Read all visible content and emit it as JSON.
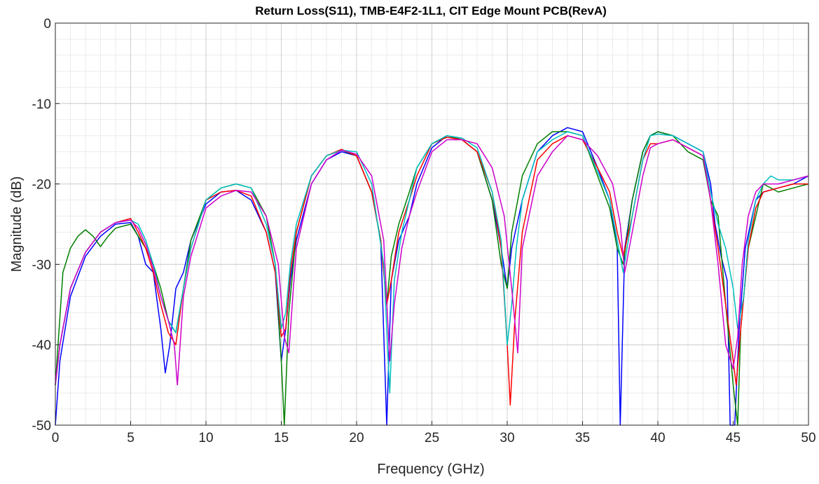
{
  "chart_data": {
    "type": "line",
    "title": "Return Loss(S11), TMB-E4F2-1L1, CIT Edge Mount PCB(RevA)",
    "xlabel": "Frequency (GHz)",
    "ylabel": "Magnitude (dB)",
    "xlim": [
      0,
      50
    ],
    "ylim": [
      -50,
      0
    ],
    "xticks": [
      0,
      5,
      10,
      15,
      20,
      25,
      30,
      35,
      40,
      45,
      50
    ],
    "yticks": [
      0,
      -10,
      -20,
      -30,
      -40,
      -50
    ],
    "xtick_labels": [
      "0",
      "5",
      "10",
      "15",
      "20",
      "25",
      "30",
      "35",
      "40",
      "45",
      "50"
    ],
    "ytick_labels": [
      "0",
      "-10",
      "-20",
      "-30",
      "-40",
      "-50"
    ],
    "grid": true,
    "minor_grid": true,
    "legend": "none",
    "series": [
      {
        "color": "#0000ff",
        "x": [
          0,
          0.3,
          1,
          2,
          3,
          4,
          5,
          5.5,
          6,
          6.5,
          7,
          7.3,
          7.6,
          8,
          8.5,
          9,
          10,
          11,
          12,
          13,
          14,
          14.6,
          15,
          15.3,
          15.6,
          16,
          17,
          18,
          19,
          20,
          21,
          21.6,
          22,
          22.3,
          22.8,
          23.5,
          24,
          25,
          26,
          27,
          28,
          29,
          29.6,
          30,
          30.3,
          31,
          32,
          33,
          34,
          35,
          36,
          36.8,
          37.3,
          37.5,
          37.8,
          38.3,
          39,
          39.5,
          40,
          41,
          42,
          43,
          43.5,
          43.8,
          44.2,
          44.6,
          44.8,
          45.1,
          45.4,
          45.8,
          46.5,
          47,
          48,
          49,
          50
        ],
        "y": [
          -50,
          -42,
          -34,
          -29,
          -26.5,
          -25,
          -24.8,
          -26.5,
          -30,
          -31,
          -38,
          -43.5,
          -40,
          -33,
          -31,
          -27,
          -22.5,
          -21,
          -20.8,
          -22,
          -26,
          -31,
          -42,
          -38,
          -32,
          -27,
          -20,
          -17,
          -16,
          -16.5,
          -21,
          -27,
          -50,
          -32,
          -27,
          -24,
          -20,
          -15.5,
          -14,
          -14.5,
          -16,
          -22,
          -28,
          -33,
          -28,
          -22,
          -16,
          -14,
          -13,
          -13.5,
          -18,
          -22,
          -28,
          -50,
          -28,
          -22,
          -16,
          -14,
          -13.5,
          -14,
          -15,
          -16,
          -20,
          -25,
          -29,
          -32,
          -50,
          -50,
          -38,
          -28,
          -22,
          -21,
          -20.5,
          -20,
          -19
        ]
      },
      {
        "color": "#008000",
        "x": [
          0,
          0.5,
          1,
          1.5,
          2,
          2.5,
          3,
          3.5,
          4,
          5,
          5.5,
          6,
          6.5,
          7,
          7.5,
          8,
          8.5,
          9,
          10,
          11,
          12,
          13,
          14,
          14.6,
          15,
          15.2,
          15.5,
          16,
          17,
          18,
          19,
          20,
          21,
          21.6,
          22,
          22.3,
          22.8,
          23.5,
          24,
          25,
          26,
          27,
          28,
          29,
          29.6,
          30,
          30.3,
          31,
          32,
          33,
          34,
          35,
          36,
          36.8,
          37.3,
          37.7,
          38.3,
          39,
          39.5,
          40,
          41,
          42,
          43,
          43.5,
          44,
          44.5,
          45,
          45.3,
          45.5,
          46,
          46.5,
          47,
          48,
          49,
          50
        ],
        "y": [
          -45,
          -31,
          -28,
          -26.5,
          -25.7,
          -26.5,
          -27.8,
          -26.5,
          -25.5,
          -25,
          -26.5,
          -28,
          -30,
          -33,
          -37,
          -38.5,
          -33,
          -27,
          -22,
          -20.5,
          -20,
          -20.5,
          -24,
          -30,
          -42,
          -50,
          -36,
          -26,
          -19,
          -16.5,
          -15.8,
          -16.5,
          -21,
          -27,
          -35,
          -29,
          -25,
          -21,
          -18,
          -15,
          -14,
          -14.5,
          -16,
          -22,
          -30,
          -33,
          -26,
          -19,
          -15,
          -13.5,
          -13.5,
          -14,
          -19,
          -23,
          -28,
          -30,
          -22,
          -16,
          -14,
          -13.5,
          -14,
          -16,
          -17,
          -22,
          -24,
          -35,
          -45,
          -50,
          -38,
          -28,
          -24,
          -20,
          -21,
          -20.5,
          -20
        ]
      },
      {
        "color": "#ff0000",
        "x": [
          0,
          0.3,
          1,
          2,
          3,
          4,
          5,
          5.5,
          6,
          6.5,
          7,
          7.5,
          8,
          8.5,
          9,
          10,
          11,
          12,
          13,
          14,
          14.6,
          15,
          15.3,
          15.6,
          16,
          17,
          18,
          19,
          20,
          21,
          21.6,
          22,
          22.3,
          22.8,
          23.5,
          24,
          25,
          26,
          27,
          28,
          29,
          29.6,
          30,
          30.2,
          30.5,
          31,
          32,
          33,
          34,
          35,
          36,
          36.8,
          37.3,
          37.7,
          38.3,
          39,
          39.5,
          40,
          41,
          42,
          43,
          43.5,
          44,
          44.5,
          45,
          45.2,
          45.5,
          46,
          46.5,
          47,
          48,
          49,
          50
        ],
        "y": [
          -45,
          -40,
          -33,
          -28.5,
          -26,
          -24.8,
          -24.3,
          -26,
          -28,
          -31,
          -35,
          -38.5,
          -40,
          -33,
          -28,
          -22,
          -21,
          -20.8,
          -21.5,
          -26,
          -31,
          -39,
          -38,
          -31,
          -26,
          -19,
          -16.5,
          -15.7,
          -16.5,
          -21,
          -27,
          -35,
          -32,
          -26,
          -22,
          -19,
          -15,
          -14.2,
          -14.5,
          -16,
          -21,
          -28,
          -40,
          -47.5,
          -37,
          -26,
          -17,
          -15,
          -14,
          -14.5,
          -18,
          -21,
          -26,
          -29,
          -24,
          -17,
          -15,
          -15,
          -14.5,
          -15.5,
          -16.5,
          -22,
          -28,
          -35,
          -42,
          -45,
          -38,
          -28,
          -23,
          -21,
          -20.5,
          -20,
          -20
        ]
      },
      {
        "color": "#00bfbf",
        "x": [
          0,
          0.3,
          1,
          2,
          3,
          4,
          5,
          5.5,
          6,
          6.5,
          7,
          7.5,
          8,
          8.5,
          9,
          10,
          11,
          12,
          13,
          14,
          14.6,
          15,
          15.3,
          15.6,
          16,
          17,
          18,
          19,
          20,
          21,
          21.8,
          22.2,
          22.5,
          23,
          23.5,
          24,
          25,
          26,
          27,
          28,
          29,
          29.6,
          30,
          30.3,
          30.6,
          31,
          32,
          33,
          34,
          35,
          36,
          36.8,
          37.3,
          37.7,
          38.3,
          39,
          39.5,
          40,
          41,
          42,
          43,
          43.5,
          44,
          44.5,
          45,
          45.3,
          45.7,
          46,
          46.5,
          47,
          47.5,
          48,
          49,
          50
        ],
        "y": [
          -45,
          -40,
          -33,
          -28.5,
          -26,
          -24.8,
          -24.5,
          -25,
          -27,
          -30,
          -34,
          -37,
          -38.5,
          -33,
          -28,
          -22,
          -20.5,
          -20,
          -20.5,
          -25,
          -30,
          -38,
          -36,
          -30,
          -25,
          -19,
          -16.5,
          -15.8,
          -16,
          -20,
          -30,
          -46,
          -32,
          -26,
          -22,
          -18,
          -15,
          -14,
          -14.3,
          -15.5,
          -21,
          -27,
          -40,
          -35,
          -28,
          -22,
          -16,
          -14.5,
          -13.5,
          -14,
          -18.5,
          -22,
          -27,
          -31,
          -24,
          -17,
          -14,
          -13.8,
          -14,
          -15,
          -16,
          -21,
          -25,
          -28,
          -33,
          -38,
          -34,
          -27,
          -22,
          -20,
          -19,
          -19.5,
          -19.5,
          -19
        ]
      },
      {
        "color": "#cc00cc",
        "x": [
          0,
          0.3,
          1,
          2,
          3,
          4,
          5,
          5.5,
          6,
          6.5,
          7,
          7.5,
          7.9,
          8.1,
          8.5,
          9,
          10,
          11,
          12,
          13,
          14,
          14.8,
          15.2,
          15.5,
          15.8,
          16,
          17,
          18,
          19,
          20,
          21,
          21.8,
          22.2,
          22.5,
          23,
          23.5,
          24,
          25,
          26,
          27,
          28,
          29,
          29.8,
          30.3,
          30.7,
          31,
          32,
          33,
          34,
          35,
          36,
          37,
          37.5,
          37.8,
          38.3,
          39,
          39.5,
          40,
          41,
          42,
          43,
          43.5,
          44,
          44.5,
          45,
          45.3,
          45.6,
          46,
          46.5,
          47,
          48,
          49,
          50
        ],
        "y": [
          -45,
          -40,
          -33,
          -28.5,
          -26,
          -24.8,
          -24.5,
          -25.5,
          -27.5,
          -30.5,
          -34,
          -37,
          -40,
          -45,
          -34,
          -29,
          -23,
          -21.5,
          -20.8,
          -21,
          -24,
          -30,
          -39,
          -41,
          -33,
          -28,
          -20,
          -17,
          -15.8,
          -16.3,
          -19,
          -27,
          -42,
          -35,
          -28,
          -24,
          -21,
          -16,
          -14.5,
          -14.5,
          -15,
          -18,
          -24,
          -33,
          -41,
          -28,
          -19,
          -16,
          -14,
          -14.5,
          -16.5,
          -20,
          -25,
          -31,
          -26,
          -19,
          -15.5,
          -15,
          -14.5,
          -15.5,
          -16.5,
          -22,
          -30,
          -40,
          -43,
          -39,
          -30,
          -24,
          -21,
          -20,
          -20,
          -19.5,
          -19
        ]
      }
    ]
  }
}
